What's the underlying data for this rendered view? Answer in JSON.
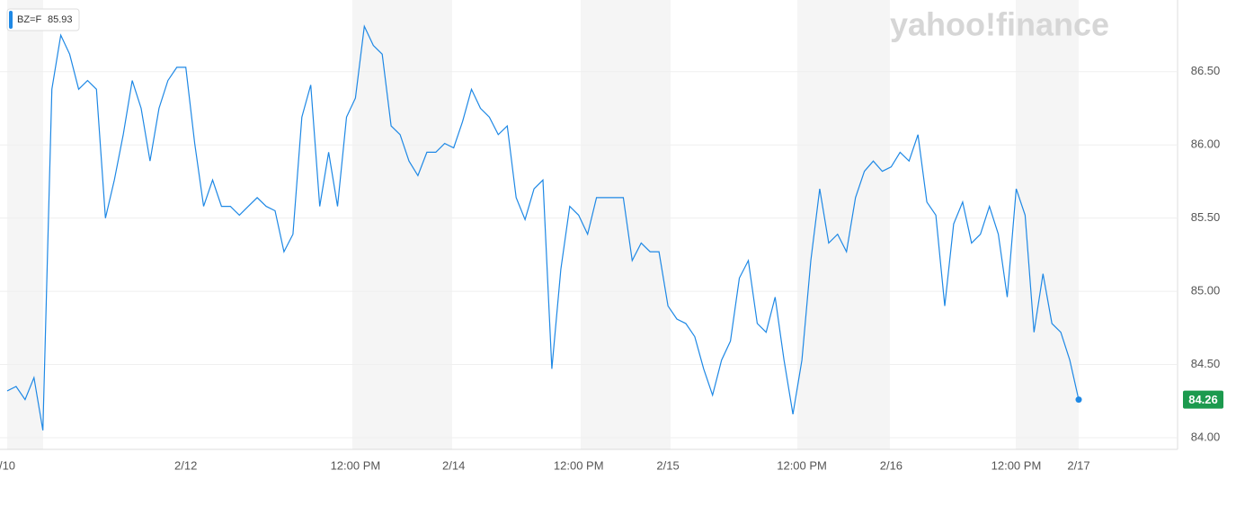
{
  "chart_data": {
    "type": "line",
    "watermark": "yahoo!finance",
    "legend_label": "BZ=F",
    "legend_value": 85.93,
    "categories": [
      "/10",
      null,
      null,
      null,
      null,
      null,
      null,
      null,
      null,
      null,
      null,
      null,
      null,
      null,
      null,
      null,
      null,
      null,
      null,
      null,
      "2/12",
      null,
      null,
      null,
      null,
      null,
      null,
      null,
      null,
      null,
      null,
      null,
      null,
      null,
      null,
      null,
      null,
      null,
      null,
      "12:00 PM",
      null,
      null,
      null,
      null,
      null,
      null,
      null,
      null,
      null,
      null,
      "2/14",
      null,
      null,
      null,
      null,
      null,
      null,
      null,
      null,
      null,
      null,
      null,
      null,
      null,
      "12:00 PM",
      null,
      null,
      null,
      null,
      null,
      null,
      null,
      null,
      null,
      "2/15",
      null,
      null,
      null,
      null,
      null,
      null,
      null,
      null,
      null,
      null,
      null,
      null,
      null,
      null,
      "12:00 PM",
      null,
      null,
      null,
      null,
      null,
      null,
      null,
      null,
      null,
      "2/16",
      null,
      null,
      null,
      null,
      null,
      null,
      null,
      null,
      null,
      null,
      null,
      null,
      null,
      "12:00 PM",
      null,
      null,
      null,
      null,
      null,
      null,
      "2/17"
    ],
    "series": [
      {
        "name": "BZ=F",
        "color": "#1e88e5",
        "values": [
          84.32,
          84.35,
          84.26,
          84.41,
          84.05,
          86.38,
          86.75,
          86.62,
          86.38,
          86.44,
          86.38,
          85.5,
          85.76,
          86.07,
          86.44,
          86.25,
          85.89,
          86.25,
          86.44,
          86.53,
          86.53,
          86.01,
          85.58,
          85.76,
          85.58,
          85.58,
          85.52,
          85.58,
          85.64,
          85.58,
          85.55,
          85.27,
          85.39,
          86.19,
          86.41,
          85.58,
          85.95,
          85.58,
          86.19,
          86.32,
          86.81,
          86.68,
          86.62,
          86.13,
          86.07,
          85.89,
          85.79,
          85.95,
          85.95,
          86.01,
          85.98,
          86.16,
          86.38,
          86.25,
          86.19,
          86.07,
          86.13,
          85.64,
          85.49,
          85.7,
          85.76,
          84.47,
          85.15,
          85.58,
          85.52,
          85.39,
          85.64,
          85.64,
          85.64,
          85.64,
          85.21,
          85.33,
          85.27,
          85.27,
          84.9,
          84.81,
          84.78,
          84.69,
          84.47,
          84.29,
          84.53,
          84.66,
          85.09,
          85.21,
          84.78,
          84.72,
          84.96,
          84.53,
          84.16,
          84.53,
          85.21,
          85.7,
          85.33,
          85.39,
          85.27,
          85.64,
          85.82,
          85.89,
          85.82,
          85.85,
          85.95,
          85.89,
          86.07,
          85.61,
          85.52,
          84.9,
          85.46,
          85.61,
          85.33,
          85.39,
          85.58,
          85.39,
          84.96,
          85.7,
          85.52,
          84.72,
          85.12,
          84.78,
          84.72,
          84.53,
          84.26
        ]
      }
    ],
    "ylim": [
      83.92,
      86.99
    ],
    "yticks": [
      {
        "value": 84,
        "label": "84.00"
      },
      {
        "value": 84.5,
        "label": "84.50"
      },
      {
        "value": 85,
        "label": "85.00"
      },
      {
        "value": 85.5,
        "label": "85.50"
      },
      {
        "value": 86,
        "label": "86.00"
      },
      {
        "value": 86.5,
        "label": "86.50"
      }
    ],
    "grid": true
  }
}
